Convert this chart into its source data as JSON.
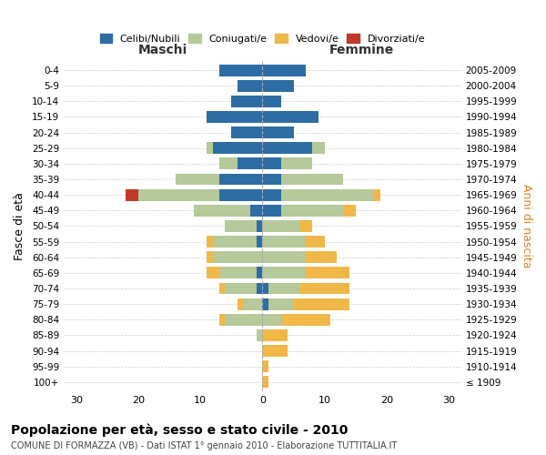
{
  "age_groups": [
    "100+",
    "95-99",
    "90-94",
    "85-89",
    "80-84",
    "75-79",
    "70-74",
    "65-69",
    "60-64",
    "55-59",
    "50-54",
    "45-49",
    "40-44",
    "35-39",
    "30-34",
    "25-29",
    "20-24",
    "15-19",
    "10-14",
    "5-9",
    "0-4"
  ],
  "birth_years": [
    "≤ 1909",
    "1910-1914",
    "1915-1919",
    "1920-1924",
    "1925-1929",
    "1930-1934",
    "1935-1939",
    "1940-1944",
    "1945-1949",
    "1950-1954",
    "1955-1959",
    "1960-1964",
    "1965-1969",
    "1970-1974",
    "1975-1979",
    "1980-1984",
    "1985-1989",
    "1990-1994",
    "1995-1999",
    "2000-2004",
    "2005-2009"
  ],
  "male": {
    "celibi": [
      0,
      0,
      0,
      0,
      0,
      0,
      1,
      1,
      0,
      1,
      1,
      2,
      7,
      7,
      4,
      8,
      5,
      9,
      5,
      4,
      7
    ],
    "coniugati": [
      0,
      0,
      0,
      1,
      6,
      3,
      5,
      6,
      8,
      7,
      5,
      9,
      13,
      7,
      3,
      1,
      0,
      0,
      0,
      0,
      0
    ],
    "vedovi": [
      0,
      0,
      0,
      0,
      1,
      1,
      1,
      2,
      1,
      1,
      0,
      0,
      0,
      0,
      0,
      0,
      0,
      0,
      0,
      0,
      0
    ],
    "divorziati": [
      0,
      0,
      0,
      0,
      0,
      0,
      0,
      0,
      0,
      0,
      0,
      0,
      2,
      0,
      0,
      0,
      0,
      0,
      0,
      0,
      0
    ]
  },
  "female": {
    "nubili": [
      0,
      0,
      0,
      0,
      0,
      1,
      1,
      0,
      0,
      0,
      0,
      3,
      3,
      3,
      3,
      8,
      5,
      9,
      3,
      5,
      7
    ],
    "coniugate": [
      0,
      0,
      0,
      0,
      3,
      4,
      5,
      7,
      7,
      7,
      6,
      10,
      15,
      10,
      5,
      2,
      0,
      0,
      0,
      0,
      0
    ],
    "vedove": [
      1,
      1,
      4,
      4,
      8,
      9,
      8,
      7,
      5,
      3,
      2,
      2,
      1,
      0,
      0,
      0,
      0,
      0,
      0,
      0,
      0
    ],
    "divorziate": [
      0,
      0,
      0,
      0,
      0,
      0,
      0,
      0,
      0,
      0,
      0,
      0,
      0,
      0,
      0,
      0,
      0,
      0,
      0,
      0,
      0
    ]
  },
  "colors": {
    "celibi": "#2e6da4",
    "coniugati": "#b5c99a",
    "vedovi": "#f0b849",
    "divorziati": "#c0392b"
  },
  "xlim": 32,
  "title": "Popolazione per età, sesso e stato civile - 2010",
  "subtitle": "COMUNE DI FORMAZZA (VB) - Dati ISTAT 1° gennaio 2010 - Elaborazione TUTTITALIA.IT",
  "ylabel_left": "Fasce di età",
  "ylabel_right": "Anni di nascita",
  "xlabel_left": "Maschi",
  "xlabel_right": "Femmine",
  "bg_color": "#ffffff",
  "grid_color": "#cccccc",
  "legend_labels": [
    "Celibi/Nubili",
    "Coniugati/e",
    "Vedovi/e",
    "Divorziati/e"
  ]
}
